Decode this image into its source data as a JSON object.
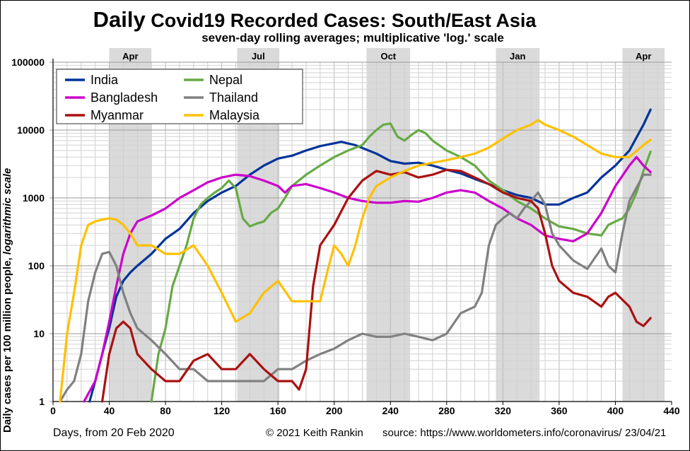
{
  "page": {
    "title_bold": "Daily",
    "title_rest": " Covid19 Recorded Cases: South/East Asia",
    "subtitle": "seven-day rolling averages; multiplicative 'log.' scale",
    "ylabel_main": "Daily cases per 100 million people, ",
    "ylabel_italic": "logarithmic scale",
    "xlabel": "Days, from 20 Feb 2020",
    "copyright": "© 2021  Keith Rankin",
    "source": "source:  https://www.worldometers.info/coronavirus/",
    "date": "23/04/21"
  },
  "chart_data": {
    "type": "line",
    "title": "Daily Covid19 Recorded Cases: South/East Asia",
    "subtitle": "seven-day rolling averages; multiplicative 'log.' scale",
    "xlabel": "Days, from 20 Feb 2020",
    "ylabel": "Daily cases per 100 million people, logarithmic scale",
    "x_ticks": [
      0,
      40,
      80,
      120,
      160,
      200,
      240,
      280,
      320,
      360,
      400,
      440
    ],
    "xlim": [
      0,
      440
    ],
    "y_scale": "log",
    "y_ticks": [
      1,
      10,
      100,
      1000,
      10000,
      100000
    ],
    "ylim": [
      1,
      100000
    ],
    "grid": true,
    "legend_position": "top-left",
    "shaded_bands": [
      {
        "label": "Apr",
        "start": 40,
        "end": 70
      },
      {
        "label": "Jul",
        "start": 131,
        "end": 161
      },
      {
        "label": "Oct",
        "start": 223,
        "end": 254
      },
      {
        "label": "Jan",
        "start": 315,
        "end": 346
      },
      {
        "label": "Apr",
        "start": 405,
        "end": 435
      }
    ],
    "series": [
      {
        "name": "India",
        "color": "#003399",
        "points": [
          [
            26,
            1
          ],
          [
            30,
            2
          ],
          [
            35,
            5
          ],
          [
            40,
            12
          ],
          [
            45,
            35
          ],
          [
            50,
            60
          ],
          [
            55,
            80
          ],
          [
            60,
            100
          ],
          [
            70,
            150
          ],
          [
            80,
            250
          ],
          [
            90,
            350
          ],
          [
            100,
            600
          ],
          [
            110,
            900
          ],
          [
            120,
            1200
          ],
          [
            130,
            1500
          ],
          [
            140,
            2200
          ],
          [
            150,
            3000
          ],
          [
            160,
            3800
          ],
          [
            170,
            4200
          ],
          [
            180,
            5000
          ],
          [
            190,
            5800
          ],
          [
            205,
            6700
          ],
          [
            215,
            6000
          ],
          [
            230,
            4500
          ],
          [
            240,
            3500
          ],
          [
            250,
            3200
          ],
          [
            260,
            3300
          ],
          [
            270,
            3000
          ],
          [
            280,
            2600
          ],
          [
            290,
            2300
          ],
          [
            300,
            1900
          ],
          [
            310,
            1600
          ],
          [
            320,
            1300
          ],
          [
            330,
            1100
          ],
          [
            340,
            1000
          ],
          [
            350,
            800
          ],
          [
            360,
            800
          ],
          [
            370,
            1000
          ],
          [
            380,
            1200
          ],
          [
            390,
            2000
          ],
          [
            400,
            3000
          ],
          [
            410,
            5000
          ],
          [
            420,
            12000
          ],
          [
            425,
            20000
          ]
        ]
      },
      {
        "name": "Nepal",
        "color": "#66aa44",
        "points": [
          [
            70,
            1
          ],
          [
            75,
            5
          ],
          [
            80,
            12
          ],
          [
            85,
            50
          ],
          [
            90,
            100
          ],
          [
            95,
            200
          ],
          [
            100,
            500
          ],
          [
            105,
            800
          ],
          [
            110,
            1000
          ],
          [
            115,
            1200
          ],
          [
            120,
            1400
          ],
          [
            125,
            1800
          ],
          [
            130,
            1400
          ],
          [
            135,
            500
          ],
          [
            140,
            380
          ],
          [
            145,
            420
          ],
          [
            150,
            450
          ],
          [
            155,
            600
          ],
          [
            160,
            700
          ],
          [
            165,
            1000
          ],
          [
            170,
            1500
          ],
          [
            180,
            2200
          ],
          [
            190,
            3000
          ],
          [
            200,
            4000
          ],
          [
            210,
            5000
          ],
          [
            220,
            6000
          ],
          [
            225,
            8000
          ],
          [
            230,
            10000
          ],
          [
            235,
            12000
          ],
          [
            240,
            12500
          ],
          [
            245,
            8000
          ],
          [
            250,
            7000
          ],
          [
            255,
            8500
          ],
          [
            260,
            10000
          ],
          [
            265,
            9000
          ],
          [
            270,
            7000
          ],
          [
            280,
            5000
          ],
          [
            290,
            4000
          ],
          [
            300,
            3000
          ],
          [
            310,
            1800
          ],
          [
            320,
            1300
          ],
          [
            330,
            900
          ],
          [
            340,
            700
          ],
          [
            350,
            500
          ],
          [
            360,
            380
          ],
          [
            370,
            350
          ],
          [
            380,
            300
          ],
          [
            390,
            280
          ],
          [
            395,
            400
          ],
          [
            400,
            450
          ],
          [
            405,
            500
          ],
          [
            410,
            700
          ],
          [
            415,
            1200
          ],
          [
            420,
            2500
          ],
          [
            425,
            4800
          ]
        ]
      },
      {
        "name": "Bangladesh",
        "color": "#cc00cc",
        "points": [
          [
            22,
            1
          ],
          [
            30,
            2
          ],
          [
            35,
            5
          ],
          [
            40,
            15
          ],
          [
            45,
            50
          ],
          [
            50,
            150
          ],
          [
            55,
            300
          ],
          [
            60,
            450
          ],
          [
            70,
            550
          ],
          [
            80,
            700
          ],
          [
            90,
            1000
          ],
          [
            100,
            1300
          ],
          [
            110,
            1700
          ],
          [
            120,
            2000
          ],
          [
            130,
            2200
          ],
          [
            140,
            2100
          ],
          [
            150,
            1800
          ],
          [
            160,
            1500
          ],
          [
            165,
            1200
          ],
          [
            170,
            1500
          ],
          [
            180,
            1600
          ],
          [
            190,
            1400
          ],
          [
            200,
            1200
          ],
          [
            210,
            1000
          ],
          [
            220,
            900
          ],
          [
            230,
            850
          ],
          [
            240,
            850
          ],
          [
            250,
            900
          ],
          [
            260,
            880
          ],
          [
            270,
            1000
          ],
          [
            280,
            1200
          ],
          [
            290,
            1300
          ],
          [
            300,
            1200
          ],
          [
            310,
            900
          ],
          [
            320,
            700
          ],
          [
            330,
            500
          ],
          [
            340,
            400
          ],
          [
            350,
            280
          ],
          [
            360,
            250
          ],
          [
            370,
            230
          ],
          [
            380,
            300
          ],
          [
            390,
            600
          ],
          [
            400,
            1500
          ],
          [
            410,
            3000
          ],
          [
            415,
            4000
          ],
          [
            420,
            3000
          ],
          [
            425,
            2400
          ]
        ]
      },
      {
        "name": "Thailand",
        "color": "#808080",
        "points": [
          [
            5,
            1
          ],
          [
            10,
            1.5
          ],
          [
            15,
            2
          ],
          [
            20,
            5
          ],
          [
            25,
            30
          ],
          [
            30,
            80
          ],
          [
            35,
            150
          ],
          [
            40,
            160
          ],
          [
            45,
            100
          ],
          [
            50,
            40
          ],
          [
            55,
            20
          ],
          [
            60,
            12
          ],
          [
            70,
            8
          ],
          [
            80,
            5
          ],
          [
            90,
            3
          ],
          [
            100,
            3
          ],
          [
            110,
            2
          ],
          [
            120,
            2
          ],
          [
            130,
            2
          ],
          [
            140,
            2
          ],
          [
            150,
            2
          ],
          [
            160,
            3
          ],
          [
            170,
            3
          ],
          [
            180,
            4
          ],
          [
            190,
            5
          ],
          [
            200,
            6
          ],
          [
            210,
            8
          ],
          [
            220,
            10
          ],
          [
            230,
            9
          ],
          [
            240,
            9
          ],
          [
            250,
            10
          ],
          [
            260,
            9
          ],
          [
            270,
            8
          ],
          [
            280,
            10
          ],
          [
            290,
            20
          ],
          [
            300,
            25
          ],
          [
            305,
            40
          ],
          [
            310,
            200
          ],
          [
            315,
            400
          ],
          [
            320,
            500
          ],
          [
            325,
            600
          ],
          [
            330,
            500
          ],
          [
            335,
            700
          ],
          [
            340,
            900
          ],
          [
            345,
            1200
          ],
          [
            350,
            800
          ],
          [
            355,
            300
          ],
          [
            360,
            200
          ],
          [
            370,
            120
          ],
          [
            380,
            90
          ],
          [
            390,
            180
          ],
          [
            395,
            100
          ],
          [
            400,
            80
          ],
          [
            405,
            300
          ],
          [
            410,
            900
          ],
          [
            420,
            2200
          ],
          [
            425,
            2200
          ]
        ]
      },
      {
        "name": "Myanmar",
        "color": "#aa1111",
        "points": [
          [
            35,
            1
          ],
          [
            40,
            5
          ],
          [
            45,
            12
          ],
          [
            50,
            15
          ],
          [
            55,
            12
          ],
          [
            60,
            5
          ],
          [
            70,
            3
          ],
          [
            80,
            2
          ],
          [
            90,
            2
          ],
          [
            100,
            4
          ],
          [
            110,
            5
          ],
          [
            120,
            3
          ],
          [
            130,
            3
          ],
          [
            140,
            5
          ],
          [
            150,
            3
          ],
          [
            160,
            2
          ],
          [
            170,
            2
          ],
          [
            175,
            1.5
          ],
          [
            180,
            3
          ],
          [
            185,
            50
          ],
          [
            190,
            200
          ],
          [
            200,
            400
          ],
          [
            210,
            1000
          ],
          [
            220,
            1800
          ],
          [
            230,
            2500
          ],
          [
            240,
            2200
          ],
          [
            250,
            2400
          ],
          [
            260,
            2000
          ],
          [
            270,
            2200
          ],
          [
            280,
            2600
          ],
          [
            290,
            2500
          ],
          [
            300,
            2000
          ],
          [
            310,
            1600
          ],
          [
            320,
            1200
          ],
          [
            330,
            1000
          ],
          [
            340,
            900
          ],
          [
            345,
            700
          ],
          [
            350,
            300
          ],
          [
            355,
            100
          ],
          [
            360,
            60
          ],
          [
            370,
            40
          ],
          [
            380,
            35
          ],
          [
            390,
            25
          ],
          [
            395,
            35
          ],
          [
            400,
            40
          ],
          [
            410,
            25
          ],
          [
            415,
            15
          ],
          [
            420,
            13
          ],
          [
            425,
            17
          ]
        ]
      },
      {
        "name": "Malaysia",
        "color": "#ffc000",
        "points": [
          [
            5,
            1
          ],
          [
            10,
            10
          ],
          [
            15,
            40
          ],
          [
            20,
            200
          ],
          [
            25,
            400
          ],
          [
            30,
            450
          ],
          [
            35,
            480
          ],
          [
            40,
            500
          ],
          [
            45,
            480
          ],
          [
            50,
            400
          ],
          [
            55,
            300
          ],
          [
            60,
            200
          ],
          [
            70,
            200
          ],
          [
            80,
            150
          ],
          [
            90,
            150
          ],
          [
            100,
            200
          ],
          [
            110,
            100
          ],
          [
            120,
            40
          ],
          [
            130,
            15
          ],
          [
            140,
            20
          ],
          [
            150,
            40
          ],
          [
            160,
            60
          ],
          [
            170,
            30
          ],
          [
            180,
            30
          ],
          [
            190,
            30
          ],
          [
            195,
            80
          ],
          [
            200,
            200
          ],
          [
            205,
            150
          ],
          [
            210,
            100
          ],
          [
            215,
            200
          ],
          [
            220,
            500
          ],
          [
            225,
            1000
          ],
          [
            230,
            1500
          ],
          [
            240,
            2000
          ],
          [
            250,
            2500
          ],
          [
            260,
            3000
          ],
          [
            270,
            3300
          ],
          [
            280,
            3600
          ],
          [
            290,
            4000
          ],
          [
            300,
            4500
          ],
          [
            310,
            5500
          ],
          [
            320,
            7500
          ],
          [
            330,
            10000
          ],
          [
            340,
            12000
          ],
          [
            345,
            14000
          ],
          [
            350,
            12000
          ],
          [
            360,
            10000
          ],
          [
            370,
            8000
          ],
          [
            380,
            6000
          ],
          [
            390,
            4500
          ],
          [
            400,
            4000
          ],
          [
            410,
            4000
          ],
          [
            420,
            6000
          ],
          [
            425,
            7200
          ]
        ]
      }
    ]
  }
}
